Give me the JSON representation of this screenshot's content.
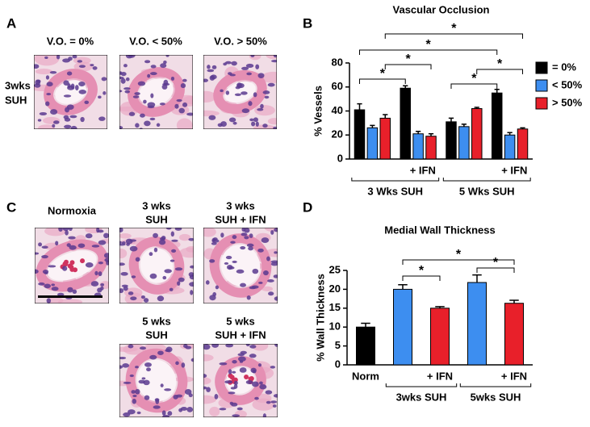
{
  "figure": {
    "panel_letters": [
      "A",
      "B",
      "C",
      "D"
    ],
    "panel_a": {
      "column_labels": [
        "V.O. = 0%",
        "V.O. < 50%",
        "V.O. > 50%"
      ],
      "row_label": [
        "3wks",
        "SUH"
      ]
    },
    "panel_c": {
      "labels": [
        [
          "Normoxia"
        ],
        [
          "3 wks",
          "SUH"
        ],
        [
          "3 wks",
          "SUH + IFN"
        ],
        [
          "5 wks",
          "SUH"
        ],
        [
          "5 wks",
          "SUH + IFN"
        ]
      ]
    }
  },
  "chart_data": [
    {
      "type": "bar",
      "title": "Vascular Occlusion",
      "y_label": "% Vessels",
      "categories": [
        null,
        "+ IFN",
        null,
        "+ IFN"
      ],
      "groups": [
        "3 Wks SUH",
        "5 Wks SUH"
      ],
      "series": [
        {
          "name": "= 0%",
          "color": "#000000",
          "values": [
            41,
            59,
            31,
            55
          ],
          "errors": [
            5,
            2,
            3,
            3
          ]
        },
        {
          "name": "< 50%",
          "color": "#3d8ef0",
          "values": [
            26,
            21,
            27,
            20
          ],
          "errors": [
            2,
            2,
            2,
            2
          ]
        },
        {
          "name": "> 50%",
          "color": "#e8202a",
          "values": [
            34,
            19,
            42,
            25
          ],
          "errors": [
            3,
            2,
            1,
            1
          ]
        }
      ],
      "ylim": [
        0,
        80
      ],
      "yticks": [
        0,
        20,
        40,
        60,
        80
      ],
      "legend": "right",
      "annotations": [
        "*",
        "*",
        "*",
        "*",
        "*",
        "*"
      ]
    },
    {
      "type": "bar",
      "title": "Medial Wall Thickness",
      "y_label": "% Wall Thickness",
      "categories": [
        "Norm",
        null,
        "+ IFN",
        null,
        "+ IFN"
      ],
      "groups": [
        "3wks SUH",
        "5wks SUH"
      ],
      "values": [
        10,
        20,
        15,
        21.8,
        16.3
      ],
      "errors": [
        1,
        1.2,
        0.4,
        2,
        0.8
      ],
      "colors": [
        "#000000",
        "#3d8ef0",
        "#e8202a",
        "#3d8ef0",
        "#e8202a"
      ],
      "ylim": [
        0,
        25
      ],
      "yticks": [
        0,
        5,
        10,
        15,
        20,
        25
      ],
      "annotations": [
        "*",
        "*",
        "*"
      ]
    }
  ]
}
